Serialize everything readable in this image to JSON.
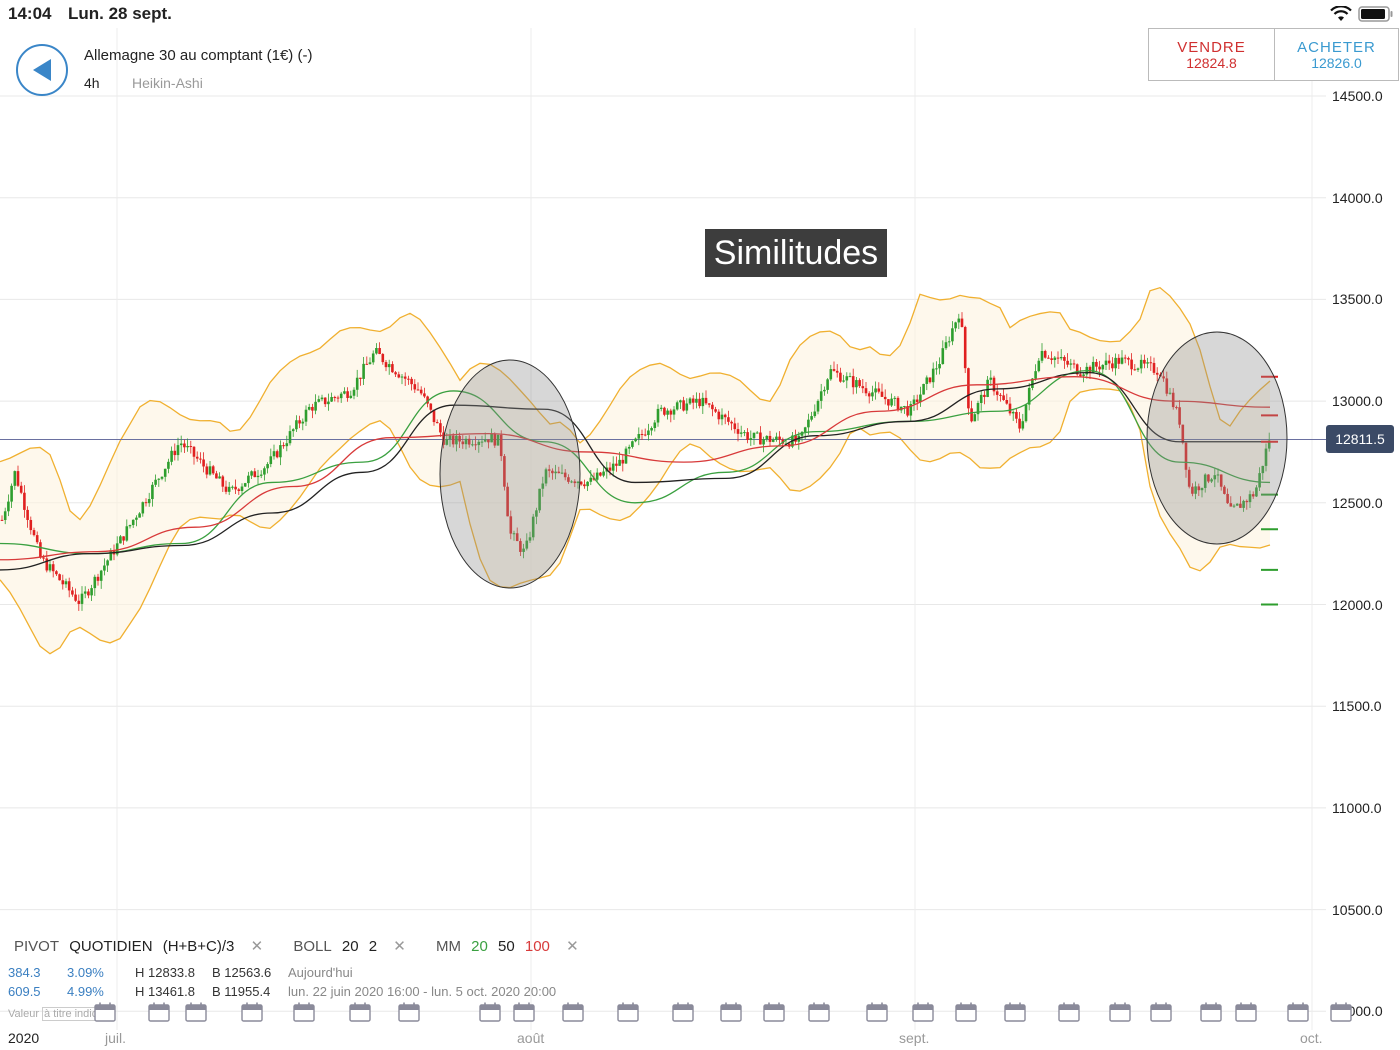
{
  "status": {
    "time": "14:04",
    "date": "Lun. 28 sept."
  },
  "header": {
    "instrument": "Allemagne 30 au comptant (1€) (-)",
    "timeframe": "4h",
    "chart_type": "Heikin-Ashi"
  },
  "trade": {
    "sell_label": "VENDRE",
    "sell_price": "12824.8",
    "buy_label": "ACHETER",
    "buy_price": "12826.0"
  },
  "annotation": "Similitudes",
  "current_price": "12811.5",
  "legend": {
    "pivot": "PIVOT",
    "pivot_period": "QUOTIDIEN",
    "pivot_formula": "(H+B+C)/3",
    "boll": "BOLL",
    "boll_period": "20",
    "boll_dev": "2",
    "mm": "MM",
    "mm_1": "20",
    "mm_2": "50",
    "mm_3": "100",
    "row1": {
      "change": "384.3",
      "pct": "3.09%",
      "high": "H 12833.8",
      "low": "B 12563.6",
      "range": "Aujourd'hui"
    },
    "row2": {
      "change": "609.5",
      "pct": "4.99%",
      "high": "H 13461.8",
      "low": "B 11955.4",
      "range": "lun. 22 juin 2020 16:00 - lun. 5 oct. 2020 20:00"
    },
    "disclaimer_a": "Valeur ",
    "disclaimer_b": "à titre indicatif"
  },
  "x_axis": {
    "year": "2020",
    "months": [
      "juil.",
      "août",
      "sept.",
      "oct."
    ]
  },
  "colors": {
    "up": "#2e9e2e",
    "down": "#e02020",
    "bollinger": "#f0b030",
    "ma20": "#3aa040",
    "ma50": "#222222",
    "ma100": "#d83a3a",
    "accent": "#3a86c8"
  },
  "chart_data": {
    "type": "candlestick",
    "x_range": [
      "2020-06-22",
      "2020-10-05"
    ],
    "ylim": [
      10000,
      14700
    ],
    "y_ticks": [
      "14500.0",
      "14000.0",
      "13500.0",
      "13000.0",
      "12500.0",
      "12000.0",
      "11500.0",
      "11000.0",
      "10500.0",
      "10000.0"
    ],
    "pivot_levels": {
      "resistance": [
        13120,
        12930,
        12800
      ],
      "support": [
        12540,
        12370,
        12170,
        12000
      ]
    },
    "series": [
      {
        "name": "MM 20",
        "values": [
          12300,
          12250,
          12300,
          12600,
          12700,
          13050,
          12800,
          12500,
          12650,
          12850,
          12900,
          12950,
          13150,
          12700,
          12600
        ]
      },
      {
        "name": "MM 50",
        "values": [
          12170,
          12250,
          12290,
          12450,
          12650,
          12980,
          12960,
          12600,
          12620,
          12830,
          12900,
          13060,
          13140,
          12800,
          12800
        ]
      },
      {
        "name": "MM 100",
        "values": [
          12220,
          12260,
          12380,
          12580,
          12820,
          12840,
          12750,
          12700,
          12780,
          12950,
          13080,
          13120,
          13000,
          12970
        ]
      }
    ]
  }
}
